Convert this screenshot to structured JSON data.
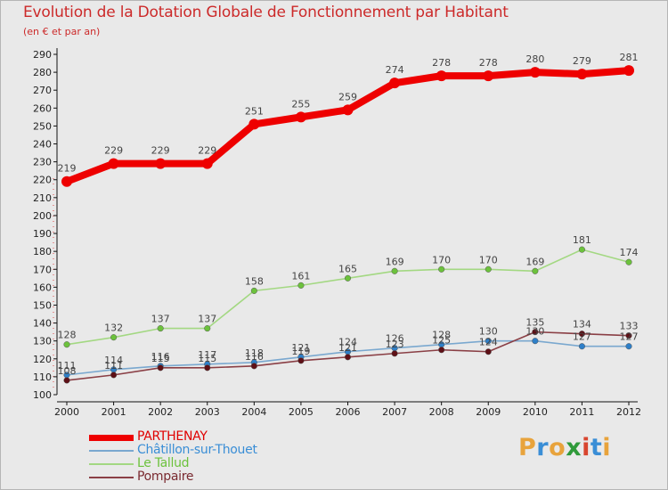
{
  "header": {
    "title": "Evolution de la Dotation Globale de Fonctionnement par Habitant",
    "subtitle": "(en € et par an)"
  },
  "brand": {
    "letters": [
      "P",
      "r",
      "o",
      "x",
      "i",
      "t",
      "i"
    ],
    "colors": [
      "#e8a33c",
      "#3a8ed6",
      "#e8a33c",
      "#2f9a3a",
      "#d8452f",
      "#3a8ed6",
      "#e8a33c"
    ]
  },
  "chart_data": {
    "type": "line",
    "title": "Evolution de la Dotation Globale de Fonctionnement par Habitant",
    "subtitle": "(en € et par an)",
    "xlabel": "",
    "ylabel": "",
    "x": [
      "2000",
      "2001",
      "2002",
      "2003",
      "2004",
      "2005",
      "2006",
      "2007",
      "2008",
      "2009",
      "2010",
      "2011",
      "2012"
    ],
    "ylim": [
      100,
      290
    ],
    "ystep": 10,
    "grid": false,
    "legend_position": "bottom-left",
    "series": [
      {
        "name": "PARTHENAY",
        "values": [
          219,
          229,
          229,
          229,
          251,
          255,
          259,
          274,
          278,
          278,
          280,
          279,
          281
        ],
        "color": "#ee0000",
        "marker_color": "#ee0000",
        "bold": true,
        "labels": true
      },
      {
        "name": "Châtillon-sur-Thouet",
        "values": [
          111,
          114,
          116,
          117,
          118,
          121,
          124,
          126,
          128,
          130,
          130,
          127,
          127
        ],
        "color": "#7aa8cf",
        "marker_color": "#2e7fc8",
        "bold": false,
        "labels": true
      },
      {
        "name": "Le Tallud",
        "values": [
          128,
          132,
          137,
          137,
          158,
          161,
          165,
          169,
          170,
          170,
          169,
          181,
          174
        ],
        "color": "#a3d882",
        "marker_color": "#6cc23c",
        "bold": false,
        "labels": true
      },
      {
        "name": "Pompaire",
        "values": [
          108,
          111,
          115,
          115,
          116,
          119,
          121,
          123,
          125,
          124,
          135,
          134,
          133
        ],
        "color": "#8a3f45",
        "marker_color": "#5e1016",
        "bold": false,
        "labels": true
      }
    ]
  }
}
